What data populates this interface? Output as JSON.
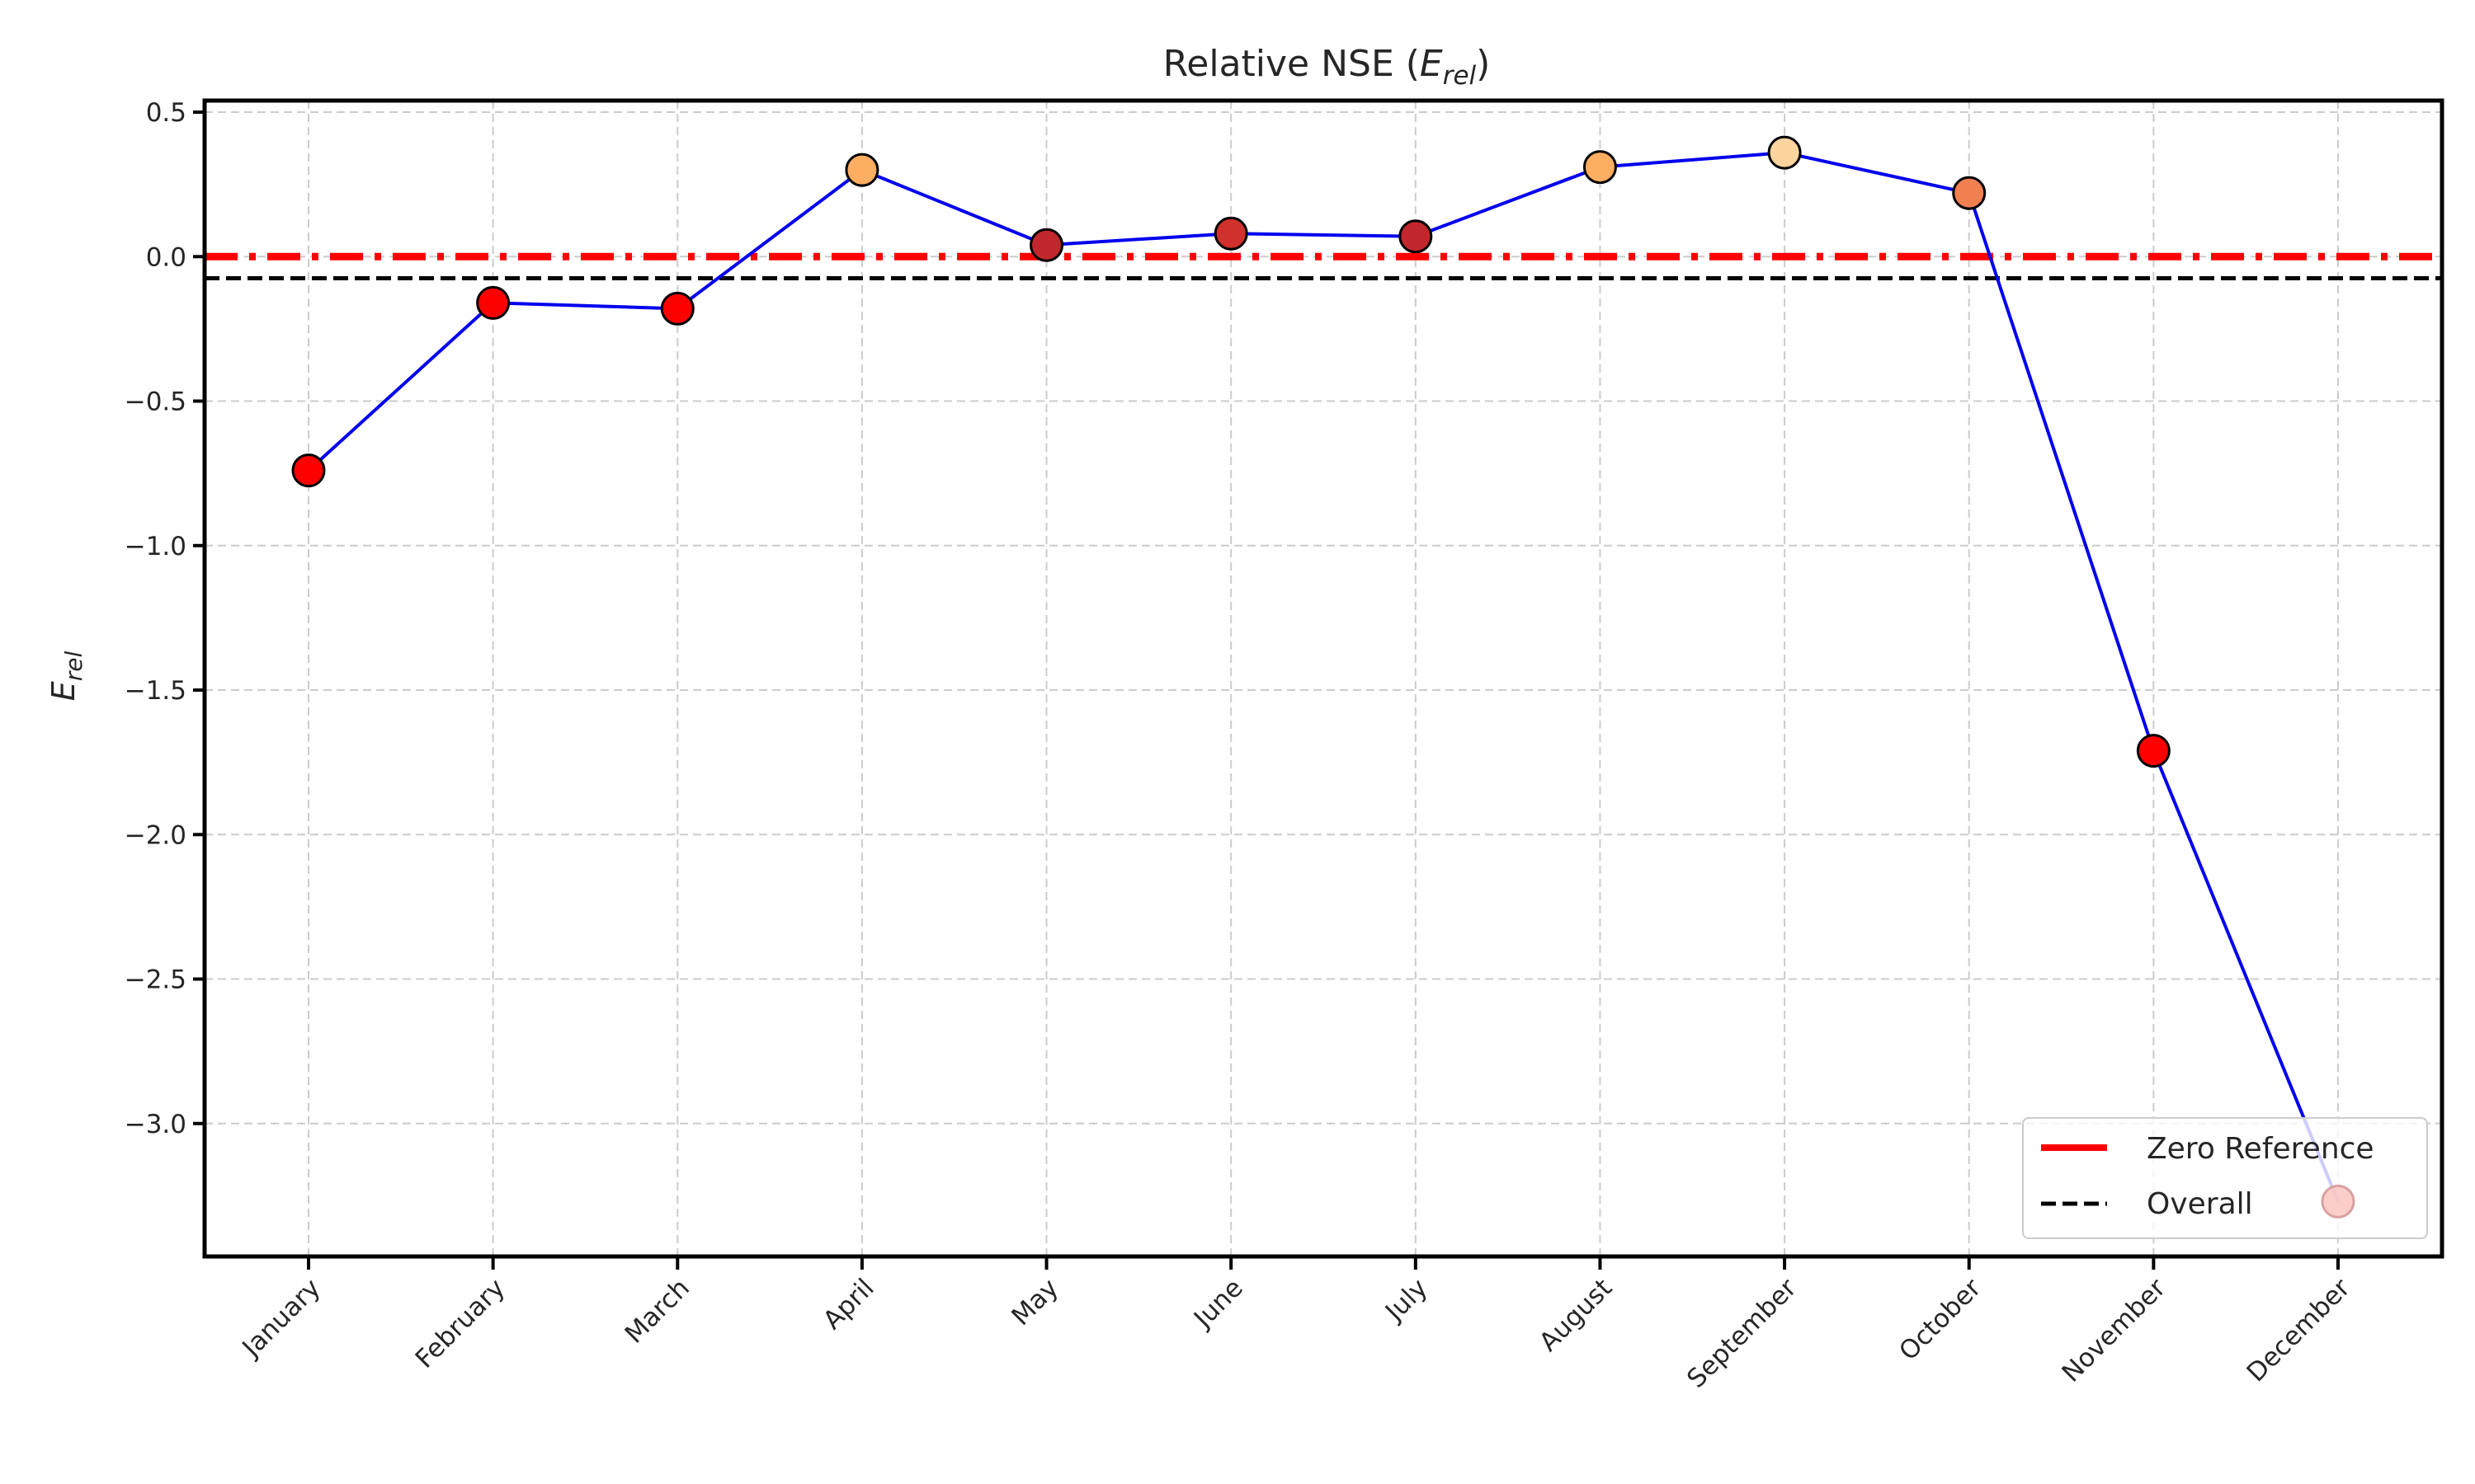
{
  "chart_data": {
    "type": "line",
    "title_main": "Relative NSE (",
    "title_sym": "E",
    "title_sub": "rel",
    "title_end": ")",
    "ylabel_sym": "E",
    "ylabel_sub": "rel",
    "categories": [
      "January",
      "February",
      "March",
      "April",
      "May",
      "June",
      "July",
      "August",
      "September",
      "October",
      "November",
      "December"
    ],
    "series": [
      {
        "values": [
          -0.74,
          -0.16,
          -0.18,
          0.3,
          0.04,
          0.08,
          0.07,
          0.31,
          0.36,
          0.22,
          -1.71,
          -3.27
        ]
      }
    ],
    "marker_colors": [
      "#ff0000",
      "#ff0000",
      "#ff0000",
      "#fdae61",
      "#c1272d",
      "#d0312d",
      "#c1272d",
      "#fdae61",
      "#fdd49e",
      "#f08050",
      "#ff0000",
      "#fcc5c0"
    ],
    "line_color": "#0000ee",
    "reference_lines": [
      {
        "name": "Zero Reference",
        "value": 0.0,
        "color": "#ff0000",
        "style": "dashdot"
      },
      {
        "name": "Overall",
        "value": -0.075,
        "color": "#000000",
        "style": "dashed"
      }
    ],
    "yticks": [
      0.5,
      0.0,
      -0.5,
      -1.0,
      -1.5,
      -2.0,
      -2.5,
      -3.0
    ],
    "ytick_labels": [
      "0.5",
      "0.0",
      "−0.5",
      "−1.0",
      "−1.5",
      "−2.0",
      "−2.5",
      "−3.0"
    ],
    "ylim": [
      -3.46,
      0.54
    ],
    "grid": true,
    "legend_position": "lower-right"
  }
}
